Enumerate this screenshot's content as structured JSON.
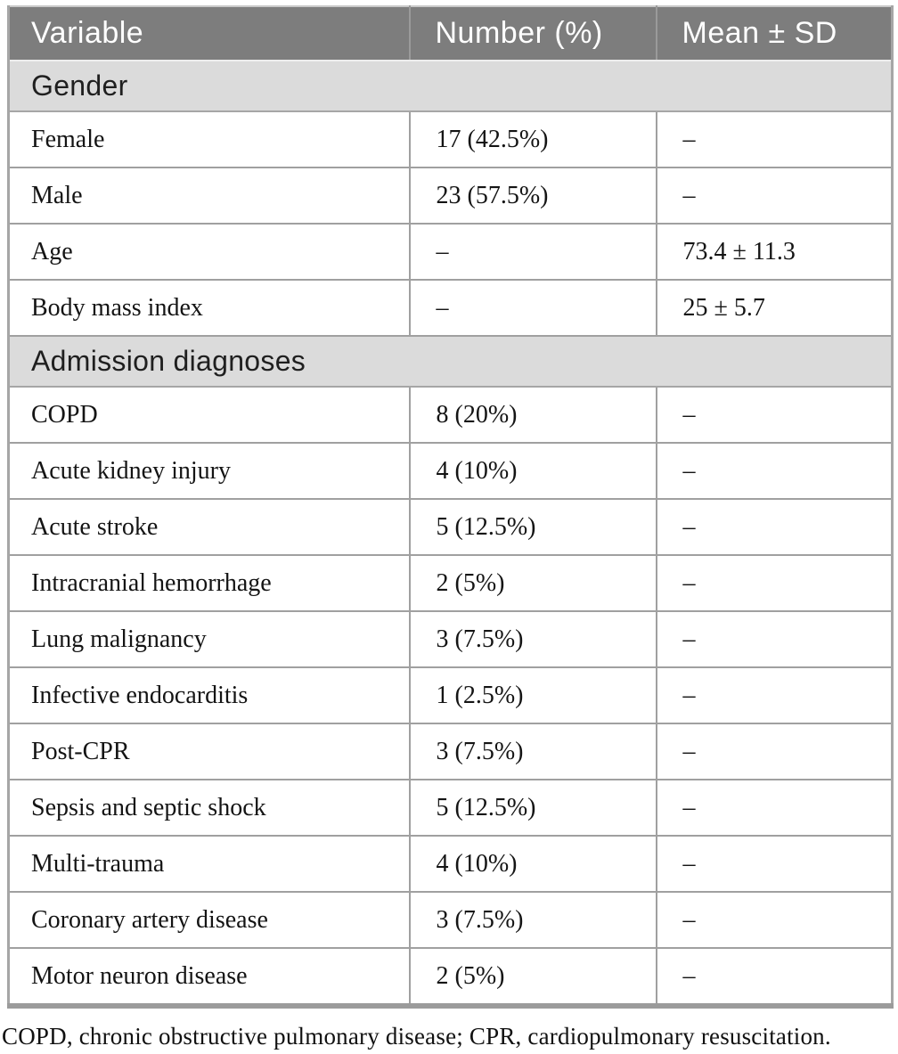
{
  "table": {
    "columns": [
      "Variable",
      "Number (%)",
      "Mean ± SD"
    ],
    "sections": [
      {
        "title": "Gender",
        "rows": [
          [
            "Female",
            "17 (42.5%)",
            "–"
          ],
          [
            "Male",
            "23 (57.5%)",
            "–"
          ],
          [
            "Age",
            "–",
            "73.4 ± 11.3"
          ],
          [
            "Body mass index",
            "–",
            "25 ± 5.7"
          ]
        ]
      },
      {
        "title": "Admission diagnoses",
        "rows": [
          [
            "COPD",
            "8 (20%)",
            "–"
          ],
          [
            "Acute kidney injury",
            "4 (10%)",
            "–"
          ],
          [
            "Acute stroke",
            "5 (12.5%)",
            "–"
          ],
          [
            "Intracranial hemorrhage",
            "2 (5%)",
            "–"
          ],
          [
            "Lung malignancy",
            "3 (7.5%)",
            "–"
          ],
          [
            "Infective endocarditis",
            "1 (2.5%)",
            "–"
          ],
          [
            "Post-CPR",
            "3 (7.5%)",
            "–"
          ],
          [
            "Sepsis and septic shock",
            "5 (12.5%)",
            "–"
          ],
          [
            "Multi-trauma",
            "4 (10%)",
            "–"
          ],
          [
            "Coronary artery disease",
            "3 (7.5%)",
            "–"
          ],
          [
            "Motor neuron disease",
            "2 (5%)",
            "–"
          ]
        ]
      }
    ],
    "footnote": "COPD, chronic obstructive pulmonary disease; CPR, cardiopulmonary resuscitation."
  },
  "colors": {
    "header_bg": "#7d7d7d",
    "header_text": "#ffffff",
    "section_bg": "#dbdbdb",
    "border_color": "#a6a6a6"
  }
}
